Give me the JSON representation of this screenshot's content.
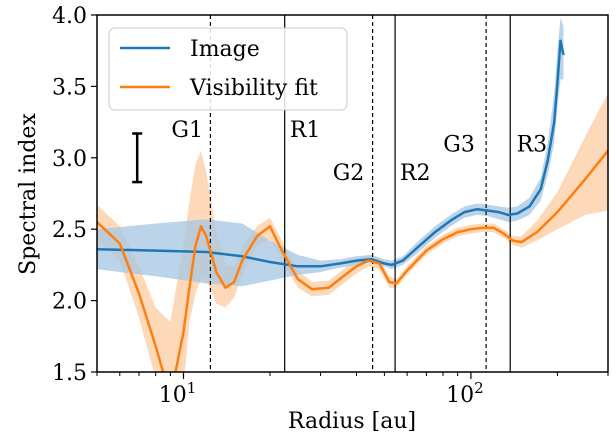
{
  "chart_data": {
    "type": "line",
    "xlabel": "Radius [au]",
    "ylabel": "Spectral index",
    "x_scale": "log",
    "xlim": [
      5,
      300
    ],
    "ylim": [
      1.5,
      4.0
    ],
    "x_ticks": [
      {
        "value": 10,
        "base": "10",
        "exp": "1"
      },
      {
        "value": 100,
        "base": "10",
        "exp": "2"
      }
    ],
    "y_ticks": [
      "1.5",
      "2.0",
      "2.5",
      "3.0",
      "3.5",
      "4.0"
    ],
    "legend_position": "top-left",
    "colors": {
      "image": "#1f77b4",
      "fit": "#ff7f0e",
      "image_band": "#a6c6e3",
      "fit_band": "#fdd0a8"
    },
    "series": [
      {
        "name": "Image",
        "color": "#1f77b4",
        "x": [
          5,
          8,
          12,
          16,
          20,
          25,
          30,
          35,
          40,
          45,
          50,
          53,
          58,
          65,
          75,
          85,
          95,
          105,
          115,
          125,
          135,
          145,
          160,
          175,
          185,
          195,
          200,
          205,
          210
        ],
        "y": [
          2.36,
          2.35,
          2.34,
          2.31,
          2.27,
          2.24,
          2.24,
          2.26,
          2.28,
          2.29,
          2.26,
          2.25,
          2.28,
          2.37,
          2.48,
          2.56,
          2.62,
          2.64,
          2.63,
          2.62,
          2.6,
          2.61,
          2.66,
          2.78,
          2.98,
          3.25,
          3.52,
          3.82,
          3.72
        ],
        "band_low": [
          2.22,
          2.17,
          2.12,
          2.1,
          2.14,
          2.18,
          2.2,
          2.23,
          2.25,
          2.27,
          2.24,
          2.22,
          2.25,
          2.33,
          2.44,
          2.52,
          2.58,
          2.6,
          2.59,
          2.57,
          2.55,
          2.56,
          2.6,
          2.7,
          2.88,
          3.1,
          3.35,
          3.55,
          3.55
        ],
        "band_high": [
          2.5,
          2.54,
          2.57,
          2.54,
          2.42,
          2.32,
          2.28,
          2.29,
          2.31,
          2.32,
          2.29,
          2.28,
          2.31,
          2.41,
          2.52,
          2.6,
          2.66,
          2.68,
          2.67,
          2.66,
          2.65,
          2.66,
          2.72,
          2.86,
          3.1,
          3.45,
          3.75,
          3.98,
          3.92
        ]
      },
      {
        "name": "Visibility fit",
        "color": "#ff7f0e",
        "x": [
          5,
          6,
          7,
          8,
          9,
          10,
          10.5,
          11,
          11.5,
          12,
          13,
          14,
          15,
          16,
          18,
          20,
          22,
          25,
          28,
          32,
          36,
          40,
          44,
          48,
          52,
          55,
          60,
          70,
          80,
          90,
          100,
          110,
          120,
          130,
          140,
          150,
          170,
          200,
          250,
          300
        ],
        "y": [
          2.55,
          2.4,
          2.05,
          1.68,
          1.32,
          1.78,
          2.1,
          2.38,
          2.52,
          2.45,
          2.2,
          2.09,
          2.13,
          2.28,
          2.45,
          2.52,
          2.35,
          2.15,
          2.08,
          2.09,
          2.17,
          2.24,
          2.28,
          2.26,
          2.13,
          2.12,
          2.21,
          2.35,
          2.43,
          2.48,
          2.5,
          2.51,
          2.51,
          2.47,
          2.42,
          2.41,
          2.48,
          2.62,
          2.85,
          3.05
        ],
        "band_low": [
          2.43,
          2.28,
          1.88,
          1.45,
          1.05,
          1.4,
          1.85,
          2.05,
          2.15,
          2.15,
          1.98,
          1.95,
          2.02,
          2.18,
          2.38,
          2.43,
          2.28,
          2.09,
          2.03,
          2.04,
          2.12,
          2.19,
          2.24,
          2.22,
          2.09,
          2.09,
          2.18,
          2.32,
          2.4,
          2.45,
          2.47,
          2.48,
          2.48,
          2.44,
          2.39,
          2.37,
          2.42,
          2.5,
          2.6,
          2.63
        ],
        "band_high": [
          2.67,
          2.52,
          2.24,
          1.95,
          1.85,
          2.4,
          2.7,
          2.95,
          3.05,
          2.9,
          2.48,
          2.25,
          2.24,
          2.38,
          2.52,
          2.58,
          2.42,
          2.21,
          2.13,
          2.14,
          2.22,
          2.29,
          2.32,
          2.3,
          2.17,
          2.15,
          2.24,
          2.38,
          2.46,
          2.51,
          2.53,
          2.54,
          2.54,
          2.5,
          2.45,
          2.45,
          2.56,
          2.76,
          3.15,
          3.45
        ]
      }
    ],
    "vlines": [
      {
        "x": 12.4,
        "style": "dashed"
      },
      {
        "x": 22.5,
        "style": "solid"
      },
      {
        "x": 45.5,
        "style": "dashed"
      },
      {
        "x": 54.5,
        "style": "solid"
      },
      {
        "x": 113,
        "style": "dashed"
      },
      {
        "x": 137,
        "style": "solid"
      }
    ],
    "annotations": [
      {
        "text": "G1",
        "x": 10.3,
        "y": 3.2
      },
      {
        "text": "R1",
        "x": 26.5,
        "y": 3.2
      },
      {
        "text": "G2",
        "x": 37.5,
        "y": 2.9
      },
      {
        "text": "R2",
        "x": 64.0,
        "y": 2.9
      },
      {
        "text": "G3",
        "x": 91.0,
        "y": 3.1
      },
      {
        "text": "R3",
        "x": 163.0,
        "y": 3.1
      }
    ],
    "error_bar": {
      "x": 6.9,
      "y_low": 2.83,
      "y_high": 3.17
    }
  }
}
